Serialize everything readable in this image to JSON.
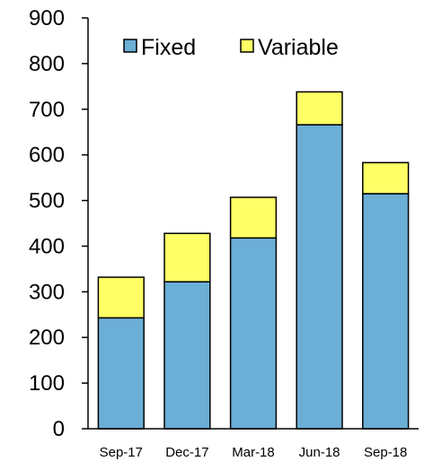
{
  "chart_data": {
    "type": "bar",
    "stacked": true,
    "categories": [
      "Sep-17",
      "Dec-17",
      "Mar-18",
      "Jun-18",
      "Sep-18"
    ],
    "series": [
      {
        "name": "Fixed",
        "values": [
          243,
          322,
          418,
          666,
          515
        ],
        "color": "#6baed6"
      },
      {
        "name": "Variable",
        "values": [
          89,
          106,
          89,
          72,
          68
        ],
        "color": "#ffff66"
      }
    ],
    "ylim": [
      0,
      900
    ],
    "yticks": [
      0,
      100,
      200,
      300,
      400,
      500,
      600,
      700,
      800,
      900
    ],
    "grid": false,
    "legend_position": "top"
  }
}
